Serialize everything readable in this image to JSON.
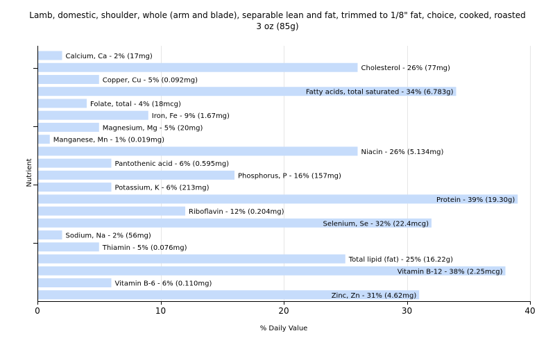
{
  "chart_data": {
    "type": "bar",
    "orientation": "horizontal",
    "title": "Lamb, domestic, shoulder, whole (arm and blade), separable lean and fat, trimmed to 1/8\" fat, choice, cooked, roasted",
    "subtitle": "3 oz (85g)",
    "xlabel": "% Daily Value",
    "ylabel": "Nutrient",
    "xlim": [
      0,
      40
    ],
    "xticks": [
      "0",
      "10",
      "20",
      "30",
      "40"
    ],
    "grid": true,
    "bar_color": "#c6dcfb",
    "categories": [
      "Calcium, Ca",
      "Cholesterol",
      "Copper, Cu",
      "Fatty acids, total saturated",
      "Folate, total",
      "Iron, Fe",
      "Magnesium, Mg",
      "Manganese, Mn",
      "Niacin",
      "Pantothenic acid",
      "Phosphorus, P",
      "Potassium, K",
      "Protein",
      "Riboflavin",
      "Selenium, Se",
      "Sodium, Na",
      "Thiamin",
      "Total lipid (fat)",
      "Vitamin B-12",
      "Vitamin B-6",
      "Zinc, Zn"
    ],
    "values": [
      2,
      26,
      5,
      34,
      4,
      9,
      5,
      1,
      26,
      6,
      16,
      6,
      39,
      12,
      32,
      2,
      5,
      25,
      38,
      6,
      31
    ],
    "labels": [
      "Calcium, Ca - 2% (17mg)",
      "Cholesterol - 26% (77mg)",
      "Copper, Cu - 5% (0.092mg)",
      "Fatty acids, total saturated - 34% (6.783g)",
      "Folate, total - 4% (18mcg)",
      "Iron, Fe - 9% (1.67mg)",
      "Magnesium, Mg - 5% (20mg)",
      "Manganese, Mn - 1% (0.019mg)",
      "Niacin - 26% (5.134mg)",
      "Pantothenic acid - 6% (0.595mg)",
      "Phosphorus, P - 16% (157mg)",
      "Potassium, K - 6% (213mg)",
      "Protein - 39% (19.30g)",
      "Riboflavin - 12% (0.204mg)",
      "Selenium, Se - 32% (22.4mcg)",
      "Sodium, Na - 2% (56mg)",
      "Thiamin - 5% (0.076mg)",
      "Total lipid (fat) - 25% (16.22g)",
      "Vitamin B-12 - 38% (2.25mcg)",
      "Vitamin B-6 - 6% (0.110mg)",
      "Zinc, Zn - 31% (4.62mg)"
    ]
  }
}
